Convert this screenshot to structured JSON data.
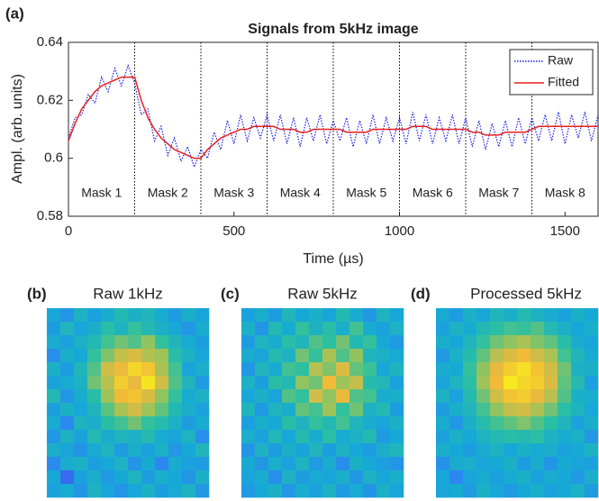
{
  "chart_data": [
    {
      "type": "line",
      "panel_label": "(a)",
      "title": "Signals from 5kHz image",
      "xlabel": "Time (µs)",
      "ylabel": "Ampl. (arb. units)",
      "x": [
        0,
        20,
        40,
        60,
        80,
        100,
        120,
        140,
        160,
        180,
        200,
        220,
        240,
        260,
        280,
        300,
        320,
        340,
        360,
        380,
        400,
        420,
        440,
        460,
        480,
        500,
        520,
        540,
        560,
        580,
        600,
        620,
        640,
        660,
        680,
        700,
        720,
        740,
        760,
        780,
        800,
        820,
        840,
        860,
        880,
        900,
        920,
        940,
        960,
        980,
        1000,
        1020,
        1040,
        1060,
        1080,
        1100,
        1120,
        1140,
        1160,
        1180,
        1200,
        1220,
        1240,
        1260,
        1280,
        1300,
        1320,
        1340,
        1360,
        1380,
        1400,
        1420,
        1440,
        1460,
        1480,
        1500,
        1520,
        1540,
        1560,
        1580,
        1600
      ],
      "series": [
        {
          "name": "Raw",
          "color": "#1f1fe6",
          "style": "dotted",
          "values": [
            0.607,
            0.614,
            0.615,
            0.622,
            0.619,
            0.628,
            0.623,
            0.631,
            0.625,
            0.632,
            0.626,
            0.615,
            0.617,
            0.606,
            0.611,
            0.601,
            0.607,
            0.599,
            0.604,
            0.597,
            0.603,
            0.6,
            0.609,
            0.603,
            0.613,
            0.605,
            0.615,
            0.606,
            0.614,
            0.607,
            0.615,
            0.606,
            0.615,
            0.605,
            0.614,
            0.604,
            0.614,
            0.606,
            0.615,
            0.605,
            0.613,
            0.606,
            0.614,
            0.604,
            0.613,
            0.605,
            0.615,
            0.605,
            0.614,
            0.606,
            0.614,
            0.605,
            0.616,
            0.606,
            0.615,
            0.605,
            0.614,
            0.606,
            0.615,
            0.605,
            0.614,
            0.604,
            0.613,
            0.603,
            0.612,
            0.604,
            0.613,
            0.604,
            0.614,
            0.605,
            0.614,
            0.606,
            0.615,
            0.606,
            0.616,
            0.605,
            0.615,
            0.607,
            0.616,
            0.606,
            0.615
          ]
        },
        {
          "name": "Fitted",
          "color": "#e8201e",
          "style": "solid",
          "values": [
            0.606,
            0.612,
            0.617,
            0.62,
            0.623,
            0.625,
            0.626,
            0.627,
            0.628,
            0.628,
            0.628,
            0.62,
            0.614,
            0.61,
            0.607,
            0.605,
            0.603,
            0.602,
            0.601,
            0.6,
            0.6,
            0.603,
            0.605,
            0.607,
            0.608,
            0.609,
            0.61,
            0.61,
            0.611,
            0.611,
            0.611,
            0.611,
            0.61,
            0.61,
            0.61,
            0.609,
            0.609,
            0.61,
            0.61,
            0.61,
            0.61,
            0.61,
            0.609,
            0.609,
            0.609,
            0.609,
            0.61,
            0.61,
            0.61,
            0.61,
            0.61,
            0.61,
            0.611,
            0.611,
            0.611,
            0.61,
            0.61,
            0.61,
            0.61,
            0.61,
            0.61,
            0.609,
            0.609,
            0.608,
            0.608,
            0.608,
            0.609,
            0.609,
            0.609,
            0.609,
            0.61,
            0.611,
            0.611,
            0.611,
            0.611,
            0.611,
            0.611,
            0.611,
            0.611,
            0.611,
            0.611
          ]
        }
      ],
      "xlim": [
        0,
        1600
      ],
      "ylim": [
        0.58,
        0.64
      ],
      "xticks": [
        0,
        500,
        1000,
        1500
      ],
      "yticks": [
        0.58,
        0.6,
        0.62,
        0.64
      ],
      "legend": "upper right",
      "mask_boundaries": [
        200,
        400,
        600,
        800,
        1000,
        1200,
        1400
      ],
      "masks": [
        "Mask 1",
        "Mask 2",
        "Mask 3",
        "Mask 4",
        "Mask 5",
        "Mask 6",
        "Mask 7",
        "Mask 8"
      ]
    },
    {
      "type": "heatmap",
      "panel_label": "(b)",
      "title": "Raw 1kHz",
      "clim": [
        0,
        1
      ],
      "colormap": [
        "#3e26a8",
        "#4150e9",
        "#2e84f4",
        "#16a9d6",
        "#2cc0a0",
        "#9bc45a",
        "#f1b93a",
        "#f9fb15"
      ],
      "values": [
        [
          0.42,
          0.35,
          0.48,
          0.4,
          0.45,
          0.52,
          0.47,
          0.5,
          0.44,
          0.38,
          0.46,
          0.41
        ],
        [
          0.38,
          0.5,
          0.41,
          0.46,
          0.55,
          0.49,
          0.58,
          0.52,
          0.47,
          0.43,
          0.36,
          0.45
        ],
        [
          0.45,
          0.4,
          0.47,
          0.52,
          0.6,
          0.66,
          0.62,
          0.7,
          0.58,
          0.5,
          0.44,
          0.39
        ],
        [
          0.33,
          0.46,
          0.43,
          0.58,
          0.68,
          0.78,
          0.82,
          0.75,
          0.72,
          0.55,
          0.48,
          0.42
        ],
        [
          0.47,
          0.38,
          0.5,
          0.62,
          0.8,
          0.85,
          0.92,
          0.88,
          0.74,
          0.6,
          0.41,
          0.46
        ],
        [
          0.4,
          0.44,
          0.48,
          0.66,
          0.76,
          0.9,
          0.84,
          0.95,
          0.8,
          0.62,
          0.5,
          0.37
        ],
        [
          0.52,
          0.36,
          0.45,
          0.55,
          0.72,
          0.86,
          0.88,
          0.82,
          0.7,
          0.58,
          0.44,
          0.48
        ],
        [
          0.39,
          0.47,
          0.42,
          0.5,
          0.63,
          0.74,
          0.8,
          0.72,
          0.64,
          0.52,
          0.46,
          0.4
        ],
        [
          0.44,
          0.3,
          0.49,
          0.46,
          0.55,
          0.6,
          0.66,
          0.58,
          0.54,
          0.47,
          0.38,
          0.45
        ],
        [
          0.36,
          0.48,
          0.4,
          0.52,
          0.45,
          0.5,
          0.48,
          0.53,
          0.44,
          0.41,
          0.49,
          0.33
        ],
        [
          0.46,
          0.41,
          0.35,
          0.44,
          0.49,
          0.38,
          0.46,
          0.4,
          0.47,
          0.36,
          0.43,
          0.5
        ],
        [
          0.31,
          0.45,
          0.47,
          0.39,
          0.42,
          0.48,
          0.35,
          0.44,
          0.3,
          0.45,
          0.4,
          0.38
        ],
        [
          0.43,
          0.22,
          0.4,
          0.46,
          0.37,
          0.43,
          0.49,
          0.38,
          0.46,
          0.42,
          0.35,
          0.47
        ],
        [
          0.4,
          0.44,
          0.36,
          0.48,
          0.41,
          0.35,
          0.42,
          0.47,
          0.39,
          0.44,
          0.48,
          0.36
        ]
      ]
    },
    {
      "type": "heatmap",
      "panel_label": "(c)",
      "title": "Raw 5kHz",
      "clim": [
        0,
        1
      ],
      "colormap": [
        "#3e26a8",
        "#4150e9",
        "#2e84f4",
        "#16a9d6",
        "#2cc0a0",
        "#9bc45a",
        "#f1b93a",
        "#f9fb15"
      ],
      "values": [
        [
          0.4,
          0.46,
          0.38,
          0.5,
          0.43,
          0.47,
          0.41,
          0.52,
          0.45,
          0.36,
          0.49,
          0.42
        ],
        [
          0.47,
          0.35,
          0.52,
          0.44,
          0.58,
          0.48,
          0.55,
          0.46,
          0.6,
          0.44,
          0.4,
          0.48
        ],
        [
          0.38,
          0.49,
          0.45,
          0.55,
          0.5,
          0.62,
          0.57,
          0.66,
          0.52,
          0.58,
          0.43,
          0.37
        ],
        [
          0.45,
          0.41,
          0.53,
          0.48,
          0.66,
          0.58,
          0.74,
          0.62,
          0.7,
          0.5,
          0.47,
          0.44
        ],
        [
          0.36,
          0.5,
          0.44,
          0.6,
          0.57,
          0.76,
          0.68,
          0.82,
          0.64,
          0.59,
          0.42,
          0.49
        ],
        [
          0.48,
          0.39,
          0.55,
          0.52,
          0.7,
          0.66,
          0.86,
          0.72,
          0.78,
          0.54,
          0.51,
          0.4
        ],
        [
          0.42,
          0.47,
          0.41,
          0.62,
          0.58,
          0.8,
          0.7,
          0.84,
          0.62,
          0.6,
          0.45,
          0.46
        ],
        [
          0.5,
          0.37,
          0.49,
          0.46,
          0.64,
          0.6,
          0.72,
          0.58,
          0.66,
          0.48,
          0.52,
          0.38
        ],
        [
          0.39,
          0.46,
          0.43,
          0.55,
          0.49,
          0.58,
          0.52,
          0.6,
          0.5,
          0.45,
          0.41,
          0.47
        ],
        [
          0.46,
          0.4,
          0.51,
          0.42,
          0.53,
          0.45,
          0.56,
          0.44,
          0.48,
          0.52,
          0.37,
          0.43
        ],
        [
          0.35,
          0.48,
          0.38,
          0.47,
          0.41,
          0.5,
          0.39,
          0.48,
          0.42,
          0.38,
          0.46,
          0.5
        ],
        [
          0.44,
          0.36,
          0.46,
          0.4,
          0.49,
          0.37,
          0.45,
          0.33,
          0.47,
          0.43,
          0.39,
          0.35
        ],
        [
          0.41,
          0.45,
          0.33,
          0.48,
          0.38,
          0.44,
          0.41,
          0.46,
          0.36,
          0.48,
          0.42,
          0.46
        ],
        [
          0.37,
          0.43,
          0.47,
          0.36,
          0.45,
          0.4,
          0.48,
          0.38,
          0.44,
          0.35,
          0.47,
          0.41
        ]
      ]
    },
    {
      "type": "heatmap",
      "panel_label": "(d)",
      "title": "Processed 5kHz",
      "clim": [
        0,
        1
      ],
      "colormap": [
        "#3e26a8",
        "#4150e9",
        "#2e84f4",
        "#16a9d6",
        "#2cc0a0",
        "#9bc45a",
        "#f1b93a",
        "#f9fb15"
      ],
      "values": [
        [
          0.44,
          0.38,
          0.47,
          0.42,
          0.5,
          0.46,
          0.53,
          0.48,
          0.45,
          0.4,
          0.47,
          0.43
        ],
        [
          0.4,
          0.48,
          0.44,
          0.52,
          0.56,
          0.6,
          0.58,
          0.62,
          0.52,
          0.47,
          0.42,
          0.46
        ],
        [
          0.46,
          0.42,
          0.5,
          0.58,
          0.66,
          0.7,
          0.74,
          0.68,
          0.64,
          0.55,
          0.45,
          0.41
        ],
        [
          0.37,
          0.47,
          0.54,
          0.64,
          0.76,
          0.82,
          0.86,
          0.8,
          0.74,
          0.6,
          0.5,
          0.44
        ],
        [
          0.45,
          0.43,
          0.58,
          0.7,
          0.84,
          0.9,
          0.94,
          0.88,
          0.8,
          0.66,
          0.48,
          0.47
        ],
        [
          0.41,
          0.49,
          0.56,
          0.72,
          0.86,
          0.96,
          0.92,
          0.9,
          0.82,
          0.64,
          0.53,
          0.39
        ],
        [
          0.48,
          0.4,
          0.53,
          0.66,
          0.8,
          0.88,
          0.9,
          0.84,
          0.76,
          0.62,
          0.47,
          0.45
        ],
        [
          0.38,
          0.46,
          0.5,
          0.6,
          0.7,
          0.78,
          0.8,
          0.74,
          0.66,
          0.56,
          0.49,
          0.42
        ],
        [
          0.45,
          0.36,
          0.47,
          0.54,
          0.6,
          0.64,
          0.68,
          0.62,
          0.56,
          0.5,
          0.4,
          0.46
        ],
        [
          0.4,
          0.47,
          0.43,
          0.49,
          0.52,
          0.55,
          0.53,
          0.56,
          0.48,
          0.45,
          0.47,
          0.36
        ],
        [
          0.46,
          0.42,
          0.38,
          0.45,
          0.48,
          0.42,
          0.47,
          0.44,
          0.46,
          0.4,
          0.43,
          0.48
        ],
        [
          0.34,
          0.45,
          0.46,
          0.41,
          0.43,
          0.47,
          0.38,
          0.45,
          0.35,
          0.44,
          0.41,
          0.4
        ],
        [
          0.42,
          0.3,
          0.41,
          0.45,
          0.39,
          0.44,
          0.47,
          0.4,
          0.45,
          0.42,
          0.37,
          0.46
        ],
        [
          0.41,
          0.44,
          0.38,
          0.47,
          0.42,
          0.37,
          0.43,
          0.46,
          0.4,
          0.43,
          0.47,
          0.38
        ]
      ]
    }
  ]
}
